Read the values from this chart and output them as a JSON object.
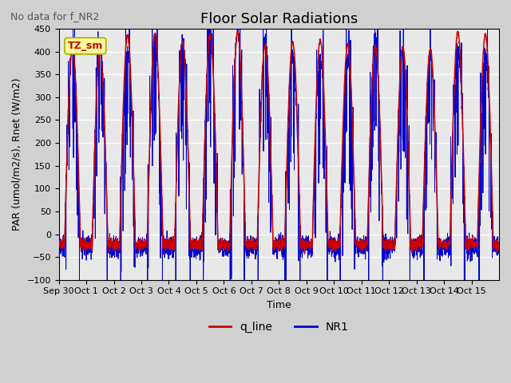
{
  "title": "Floor Solar Radiations",
  "suptitle": "No data for f_NR2",
  "xlabel": "Time",
  "ylabel": "PAR (umol/m2/s), Rnet (W/m2)",
  "ylim": [
    -100,
    450
  ],
  "yticks": [
    -100,
    -50,
    0,
    50,
    100,
    150,
    200,
    250,
    300,
    350,
    400,
    450
  ],
  "xtick_labels": [
    "Sep 30",
    "Oct 1",
    "Oct 2",
    "Oct 3",
    "Oct 4",
    "Oct 5",
    "Oct 6",
    "Oct 7",
    "Oct 8",
    "Oct 9",
    "Oct 10",
    "Oct 11",
    "Oct 12",
    "Oct 13",
    "Oct 14",
    "Oct 15"
  ],
  "legend_labels": [
    "q_line",
    "NR1"
  ],
  "q_line_color": "#cc0000",
  "nr1_color": "#0000cc",
  "annotation_text": "TZ_sm",
  "annotation_color": "#cc0000",
  "annotation_bg": "#ffff99",
  "title_fontsize": 13,
  "label_fontsize": 9,
  "tick_fontsize": 8
}
